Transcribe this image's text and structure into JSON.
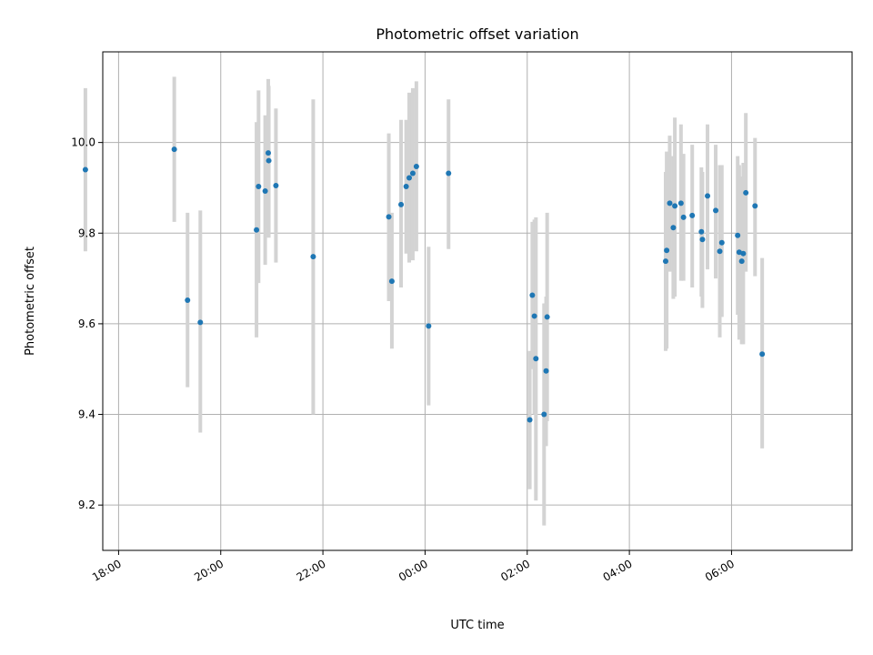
{
  "chart_data": {
    "type": "scatter",
    "title": "Photometric offset variation",
    "xlabel": "UTC time",
    "ylabel": "Photometric offset",
    "grid": true,
    "xlim": [
      -6.31,
      8.36
    ],
    "ylim": [
      9.1,
      10.2
    ],
    "x_ticks": [
      {
        "value": -6,
        "label": "18:00"
      },
      {
        "value": -4,
        "label": "20:00"
      },
      {
        "value": -2,
        "label": "22:00"
      },
      {
        "value": 0,
        "label": "00:00"
      },
      {
        "value": 2,
        "label": "02:00"
      },
      {
        "value": 4,
        "label": "04:00"
      },
      {
        "value": 6,
        "label": "06:00"
      }
    ],
    "y_ticks": [
      {
        "value": 9.2,
        "label": "9.2"
      },
      {
        "value": 9.4,
        "label": "9.4"
      },
      {
        "value": 9.6,
        "label": "9.6"
      },
      {
        "value": 9.8,
        "label": "9.8"
      },
      {
        "value": 10.0,
        "label": "10.0"
      }
    ],
    "colors": {
      "point": "#1f77b4",
      "errorbar": "#d3d3d3",
      "grid": "#b0b0b0"
    },
    "points": [
      {
        "x": -6.65,
        "y": 9.94,
        "ylo": 9.76,
        "yhi": 10.12
      },
      {
        "x": -4.91,
        "y": 9.985,
        "ylo": 9.825,
        "yhi": 10.145
      },
      {
        "x": -4.65,
        "y": 9.652,
        "ylo": 9.46,
        "yhi": 9.845
      },
      {
        "x": -4.4,
        "y": 9.603,
        "ylo": 9.36,
        "yhi": 9.85
      },
      {
        "x": -3.3,
        "y": 9.807,
        "ylo": 9.57,
        "yhi": 10.045
      },
      {
        "x": -3.26,
        "y": 9.903,
        "ylo": 9.69,
        "yhi": 10.115
      },
      {
        "x": -3.13,
        "y": 9.893,
        "ylo": 9.73,
        "yhi": 10.06
      },
      {
        "x": -3.07,
        "y": 9.977,
        "ylo": 9.81,
        "yhi": 10.14
      },
      {
        "x": -3.06,
        "y": 9.96,
        "ylo": 9.79,
        "yhi": 10.125
      },
      {
        "x": -2.92,
        "y": 9.905,
        "ylo": 9.735,
        "yhi": 10.075
      },
      {
        "x": -2.19,
        "y": 9.748,
        "ylo": 9.4,
        "yhi": 10.095
      },
      {
        "x": -0.71,
        "y": 9.836,
        "ylo": 9.65,
        "yhi": 10.02
      },
      {
        "x": -0.65,
        "y": 9.694,
        "ylo": 9.545,
        "yhi": 9.845
      },
      {
        "x": -0.47,
        "y": 9.863,
        "ylo": 9.68,
        "yhi": 10.05
      },
      {
        "x": -0.37,
        "y": 9.903,
        "ylo": 9.755,
        "yhi": 10.05
      },
      {
        "x": -0.31,
        "y": 9.922,
        "ylo": 9.735,
        "yhi": 10.11
      },
      {
        "x": -0.24,
        "y": 9.932,
        "ylo": 9.74,
        "yhi": 10.12
      },
      {
        "x": -0.17,
        "y": 9.947,
        "ylo": 9.76,
        "yhi": 10.135
      },
      {
        "x": 0.07,
        "y": 9.595,
        "ylo": 9.42,
        "yhi": 9.77
      },
      {
        "x": 0.46,
        "y": 9.932,
        "ylo": 9.765,
        "yhi": 10.095
      },
      {
        "x": 2.05,
        "y": 9.388,
        "ylo": 9.235,
        "yhi": 9.54
      },
      {
        "x": 2.1,
        "y": 9.663,
        "ylo": 9.5,
        "yhi": 9.825
      },
      {
        "x": 2.14,
        "y": 9.617,
        "ylo": 9.4,
        "yhi": 9.83
      },
      {
        "x": 2.17,
        "y": 9.523,
        "ylo": 9.21,
        "yhi": 9.835
      },
      {
        "x": 2.33,
        "y": 9.4,
        "ylo": 9.155,
        "yhi": 9.645
      },
      {
        "x": 2.37,
        "y": 9.496,
        "ylo": 9.33,
        "yhi": 9.66
      },
      {
        "x": 2.39,
        "y": 9.615,
        "ylo": 9.385,
        "yhi": 9.845
      },
      {
        "x": 4.71,
        "y": 9.738,
        "ylo": 9.54,
        "yhi": 9.935
      },
      {
        "x": 4.73,
        "y": 9.762,
        "ylo": 9.545,
        "yhi": 9.98
      },
      {
        "x": 4.79,
        "y": 9.866,
        "ylo": 9.715,
        "yhi": 10.015
      },
      {
        "x": 4.86,
        "y": 9.812,
        "ylo": 9.655,
        "yhi": 9.97
      },
      {
        "x": 4.89,
        "y": 9.86,
        "ylo": 9.66,
        "yhi": 10.055
      },
      {
        "x": 5.01,
        "y": 9.866,
        "ylo": 9.695,
        "yhi": 10.04
      },
      {
        "x": 5.06,
        "y": 9.835,
        "ylo": 9.695,
        "yhi": 9.975
      },
      {
        "x": 5.23,
        "y": 9.839,
        "ylo": 9.68,
        "yhi": 9.995
      },
      {
        "x": 5.41,
        "y": 9.803,
        "ylo": 9.66,
        "yhi": 9.945
      },
      {
        "x": 5.43,
        "y": 9.786,
        "ylo": 9.635,
        "yhi": 9.935
      },
      {
        "x": 5.53,
        "y": 9.882,
        "ylo": 9.72,
        "yhi": 10.04
      },
      {
        "x": 5.69,
        "y": 9.85,
        "ylo": 9.7,
        "yhi": 9.995
      },
      {
        "x": 5.77,
        "y": 9.76,
        "ylo": 9.57,
        "yhi": 9.95
      },
      {
        "x": 5.81,
        "y": 9.779,
        "ylo": 9.615,
        "yhi": 9.95
      },
      {
        "x": 6.12,
        "y": 9.795,
        "ylo": 9.62,
        "yhi": 9.97
      },
      {
        "x": 6.15,
        "y": 9.758,
        "ylo": 9.565,
        "yhi": 9.95
      },
      {
        "x": 6.2,
        "y": 9.738,
        "ylo": 9.555,
        "yhi": 9.925
      },
      {
        "x": 6.23,
        "y": 9.755,
        "ylo": 9.555,
        "yhi": 9.955
      },
      {
        "x": 6.28,
        "y": 9.889,
        "ylo": 9.715,
        "yhi": 10.065
      },
      {
        "x": 6.46,
        "y": 9.86,
        "ylo": 9.705,
        "yhi": 10.01
      },
      {
        "x": 6.6,
        "y": 9.533,
        "ylo": 9.325,
        "yhi": 9.745
      }
    ]
  }
}
